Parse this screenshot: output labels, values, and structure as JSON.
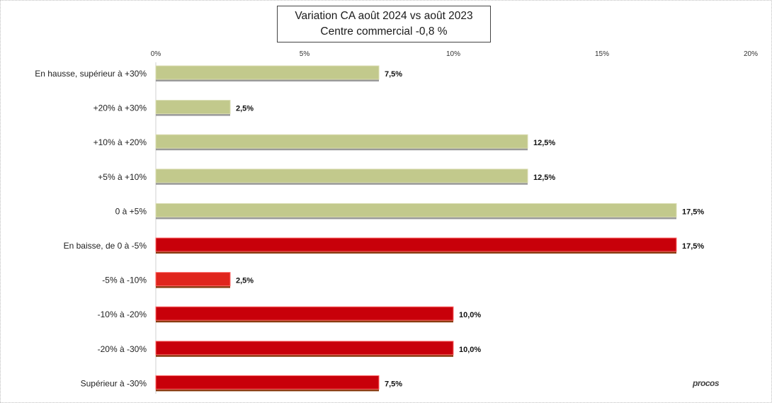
{
  "chart_data": {
    "type": "bar",
    "orientation": "horizontal",
    "title": "Variation CA août 2024 vs août 2023",
    "subtitle": "Centre commercial  -0,8 %",
    "xlim": [
      0,
      20
    ],
    "x_ticks": [
      "0%",
      "5%",
      "10%",
      "15%",
      "20%"
    ],
    "categories": [
      "En hausse, supérieur à +30%",
      "+20% à +30%",
      "+10% à +20%",
      "+5% à +10%",
      "0 à +5%",
      "En baisse, de 0 à -5%",
      "-5% à -10%",
      "-10% à -20%",
      "-20% à -30%",
      "Supérieur à -30%"
    ],
    "values": [
      7.5,
      2.5,
      12.5,
      12.5,
      17.5,
      17.5,
      2.5,
      10.0,
      10.0,
      7.5
    ],
    "value_labels": [
      "7,5%",
      "2,5%",
      "12,5%",
      "12,5%",
      "17,5%",
      "17,5%",
      "2,5%",
      "10,0%",
      "10,0%",
      "7,5%"
    ],
    "colors": [
      "#c2c98c",
      "#c2c98c",
      "#c2c98c",
      "#c2c98c",
      "#c2c98c",
      "#c8000a",
      "#e0251d",
      "#c8000a",
      "#c8000a",
      "#c8000a"
    ],
    "grid": false,
    "legend": "none"
  },
  "logo_text": "procos"
}
